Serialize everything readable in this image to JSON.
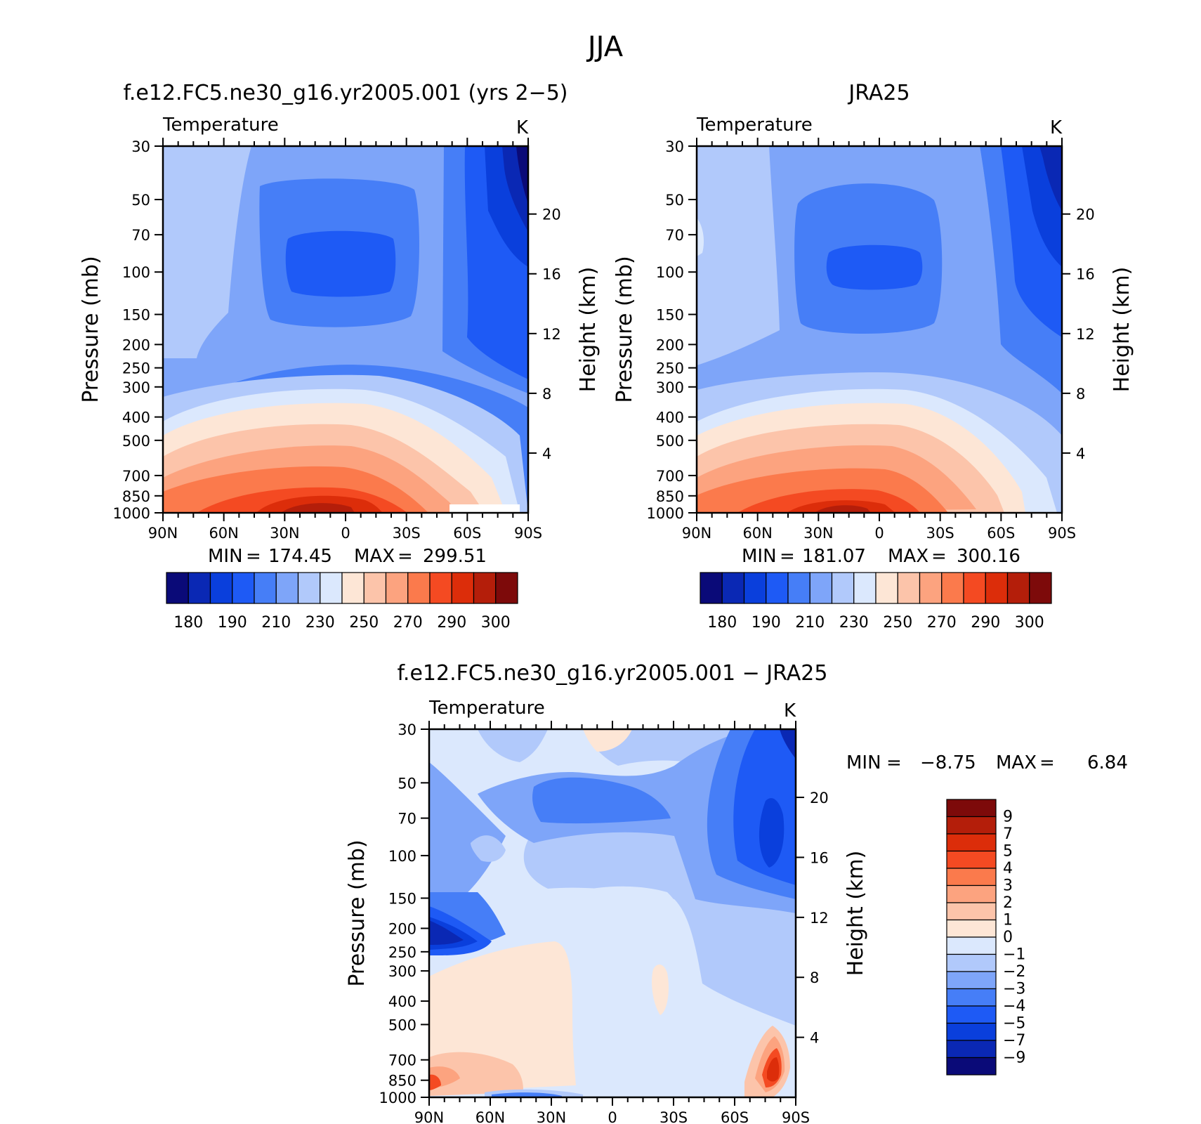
{
  "figure_title": "JJA",
  "chart_data": [
    {
      "id": "model",
      "type": "heatmap",
      "title": "f.e12.FC5.ne30_g16.yr2005.001 (yrs 2−5)",
      "variable": "Temperature",
      "units": "K",
      "xlabel": "",
      "ylabel": "Pressure (mb)",
      "y2label": "Height (km)",
      "x_ticks": [
        "90N",
        "60N",
        "30N",
        "0",
        "30S",
        "60S",
        "90S"
      ],
      "y_ticks": [
        30,
        50,
        70,
        100,
        150,
        200,
        250,
        300,
        400,
        500,
        700,
        850,
        1000
      ],
      "y2_ticks": [
        20,
        16,
        12,
        8,
        4
      ],
      "ylim": [
        1000,
        30
      ],
      "y_scale": "log",
      "xlim": [
        90,
        -90
      ],
      "stats": {
        "min_label": "MIN",
        "min": "174.45",
        "max_label": "MAX",
        "max": "299.51"
      },
      "colorbar": {
        "orientation": "horizontal",
        "levels": [
          180,
          185,
          190,
          200,
          210,
          220,
          230,
          240,
          250,
          260,
          270,
          280,
          290,
          295,
          300
        ],
        "tick_labels": [
          "180",
          "190",
          "210",
          "230",
          "250",
          "270",
          "290",
          "300"
        ],
        "colors": [
          "#0a0a78",
          "#0a28b4",
          "#0a3fdc",
          "#1e5af5",
          "#467ef7",
          "#7ea5f9",
          "#b1c9fb",
          "#dbe8fd",
          "#fde6d6",
          "#fcc4aa",
          "#fca37f",
          "#fb7a4c",
          "#f44a22",
          "#dc2d0a",
          "#b41e0a",
          "#7d0a0a"
        ]
      },
      "fill": "#7ea5f9",
      "grid": false
    },
    {
      "id": "obs",
      "type": "heatmap",
      "title": "JRA25",
      "variable": "Temperature",
      "units": "K",
      "xlabel": "",
      "ylabel": "Pressure (mb)",
      "y2label": "Height (km)",
      "x_ticks": [
        "90N",
        "60N",
        "30N",
        "0",
        "30S",
        "60S",
        "90S"
      ],
      "y_ticks": [
        30,
        50,
        70,
        100,
        150,
        200,
        250,
        300,
        400,
        500,
        700,
        850,
        1000
      ],
      "y2_ticks": [
        20,
        16,
        12,
        8,
        4
      ],
      "ylim": [
        1000,
        30
      ],
      "y_scale": "log",
      "xlim": [
        90,
        -90
      ],
      "stats": {
        "min_label": "MIN",
        "min": "181.07",
        "max_label": "MAX",
        "max": "300.16"
      },
      "colorbar": {
        "orientation": "horizontal",
        "levels": [
          180,
          185,
          190,
          200,
          210,
          220,
          230,
          240,
          250,
          260,
          270,
          280,
          290,
          295,
          300
        ],
        "tick_labels": [
          "180",
          "190",
          "210",
          "230",
          "250",
          "270",
          "290",
          "300"
        ],
        "colors": [
          "#0a0a78",
          "#0a28b4",
          "#0a3fdc",
          "#1e5af5",
          "#467ef7",
          "#7ea5f9",
          "#b1c9fb",
          "#dbe8fd",
          "#fde6d6",
          "#fcc4aa",
          "#fca37f",
          "#fb7a4c",
          "#f44a22",
          "#dc2d0a",
          "#b41e0a",
          "#7d0a0a"
        ]
      },
      "fill": "#b1c9fb",
      "grid": false
    },
    {
      "id": "diff",
      "type": "heatmap",
      "title": "f.e12.FC5.ne30_g16.yr2005.001 − JRA25",
      "variable": "Temperature",
      "units": "K",
      "xlabel": "",
      "ylabel": "Pressure (mb)",
      "y2label": "Height (km)",
      "x_ticks": [
        "90N",
        "60N",
        "30N",
        "0",
        "30S",
        "60S",
        "90S"
      ],
      "y_ticks": [
        30,
        50,
        70,
        100,
        150,
        200,
        250,
        300,
        400,
        500,
        700,
        850,
        1000
      ],
      "y2_ticks": [
        20,
        16,
        12,
        8,
        4
      ],
      "ylim": [
        1000,
        30
      ],
      "y_scale": "log",
      "xlim": [
        90,
        -90
      ],
      "stats": {
        "min_label": "MIN",
        "min": "−8.75",
        "max_label": "MAX",
        "max": "6.84"
      },
      "colorbar": {
        "orientation": "vertical",
        "levels": [
          -9,
          -7,
          -5,
          -4,
          -3,
          -2,
          -1,
          0,
          1,
          2,
          3,
          4,
          5,
          7,
          9
        ],
        "tick_labels": [
          "9",
          "7",
          "5",
          "4",
          "3",
          "2",
          "1",
          "0",
          "−1",
          "−2",
          "−3",
          "−4",
          "−5",
          "−7",
          "−9"
        ],
        "colors": [
          "#0a0a78",
          "#0a28b4",
          "#0a3fdc",
          "#1e5af5",
          "#467ef7",
          "#7ea5f9",
          "#b1c9fb",
          "#dbe8fd",
          "#fde6d6",
          "#fcc4aa",
          "#fca37f",
          "#fb7a4c",
          "#f44a22",
          "#dc2d0a",
          "#b41e0a",
          "#7d0a0a"
        ]
      },
      "fill": "#dbe8fd",
      "grid": false
    }
  ]
}
